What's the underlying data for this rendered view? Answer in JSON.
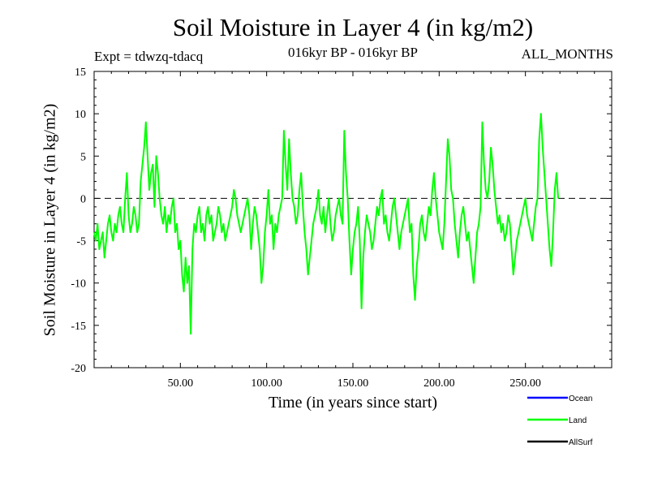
{
  "chart_data": {
    "type": "line",
    "title": "Soil Moisture in Layer 4 (in kg/m2)",
    "expt": "Expt = tdwzq-tdacq",
    "period": "016kyr BP - 016kyr BP",
    "season": "ALL_MONTHS",
    "xlabel": "Time (in years since start)",
    "ylabel": "Soil Moisture in Layer 4 (in kg/m2)",
    "xlim": [
      0,
      300
    ],
    "ylim": [
      -20,
      15
    ],
    "x_ticks": [
      "50.00",
      "100.00",
      "150.00",
      "200.00",
      "250.00"
    ],
    "y_ticks": [
      "15",
      "10",
      "5",
      "0",
      "-5",
      "-10",
      "-15",
      "-20"
    ],
    "zero_line": "dashed",
    "legend": [
      {
        "name": "Ocean",
        "color": "#0000ff"
      },
      {
        "name": "Land",
        "color": "#00ff00"
      },
      {
        "name": "AllSurf",
        "color": "#000000"
      }
    ],
    "series": [
      {
        "name": "Land",
        "color": "#00ff00",
        "x_start": 0,
        "x_step": 1,
        "values": [
          -4,
          -5,
          -3,
          -6,
          -5,
          -4,
          -7,
          -5,
          -3,
          -2,
          -4,
          -5,
          -3,
          -4,
          -2,
          -1,
          -3,
          -4,
          0,
          3,
          -2,
          -4,
          -3,
          -1,
          -2,
          -4,
          -3,
          2,
          4,
          6,
          9,
          5,
          1,
          3,
          4,
          -1,
          5,
          3,
          0,
          -2,
          -3,
          -1,
          -4,
          -2,
          -3,
          -1,
          0,
          -4,
          -3,
          -6,
          -5,
          -9,
          -11,
          -7,
          -10,
          -8,
          -16,
          -6,
          -3,
          -4,
          -2,
          -1,
          -4,
          -3,
          -5,
          -2,
          -1,
          -3,
          -2,
          -5,
          -4,
          -3,
          -1,
          -2,
          -4,
          -3,
          -5,
          -4,
          -3,
          -2,
          -1,
          1,
          0,
          -2,
          -3,
          -4,
          -3,
          -2,
          -1,
          0,
          -2,
          -6,
          -3,
          -1,
          -2,
          -4,
          -6,
          -10,
          -8,
          -4,
          -2,
          1,
          -3,
          -2,
          -6,
          -3,
          -4,
          -2,
          -1,
          0,
          8,
          4,
          1,
          7,
          3,
          0,
          -1,
          -3,
          -2,
          1,
          3,
          -1,
          -4,
          -6,
          -9,
          -7,
          -5,
          -3,
          -2,
          -1,
          1,
          -2,
          -3,
          -1,
          -4,
          -2,
          0,
          -3,
          -5,
          -4,
          -2,
          -1,
          0,
          -2,
          -3,
          8,
          3,
          0,
          -5,
          -9,
          -6,
          -4,
          -3,
          -1,
          -5,
          -13,
          -7,
          -4,
          -2,
          -3,
          -4,
          -6,
          -5,
          -3,
          -1,
          -2,
          0,
          1,
          -3,
          -2,
          -4,
          -5,
          -3,
          -1,
          0,
          -2,
          -4,
          -6,
          -4,
          -3,
          -2,
          -1,
          0,
          -4,
          -3,
          -9,
          -12,
          -8,
          -6,
          -3,
          -2,
          -4,
          -5,
          -3,
          -1,
          -2,
          1,
          3,
          0,
          -2,
          -4,
          -5,
          -6,
          -3,
          2,
          7,
          5,
          1,
          0,
          -3,
          -5,
          -7,
          -4,
          -2,
          -1,
          -3,
          -5,
          -4,
          -6,
          -8,
          -10,
          -7,
          -4,
          -3,
          -1,
          9,
          4,
          1,
          0,
          2,
          6,
          4,
          1,
          -1,
          -3,
          -2,
          -4,
          -3,
          -5,
          -4,
          -2,
          -3,
          -6,
          -9,
          -7,
          -5,
          -4,
          -3,
          -2,
          -1,
          0,
          -2,
          -3,
          -4,
          -5,
          -3,
          -1,
          0,
          7,
          10,
          6,
          3,
          0,
          -3,
          -6,
          -8,
          -4,
          1,
          3,
          0
        ]
      }
    ]
  }
}
